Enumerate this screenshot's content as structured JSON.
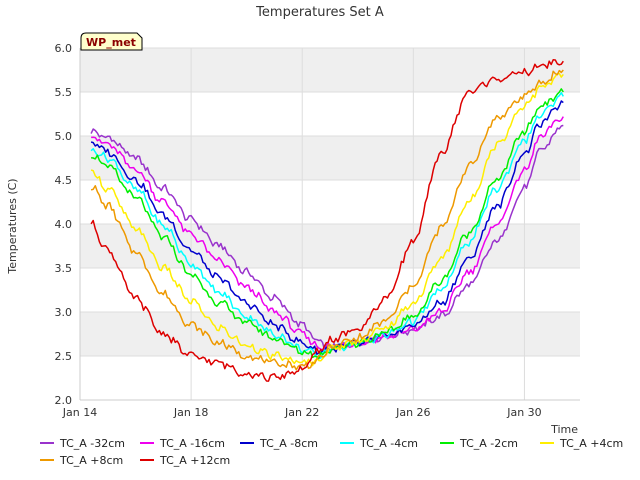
{
  "chart_data": {
    "type": "line",
    "title": "Temperatures Set A",
    "xlabel": "Time",
    "ylabel": "Temperatures (C)",
    "badge": "WP_met",
    "x_ticks": [
      "Jan 14",
      "Jan 18",
      "Jan 22",
      "Jan 26",
      "Jan 30"
    ],
    "x_tick_days": [
      14,
      18,
      22,
      26,
      30
    ],
    "y_ticks": [
      "2.0",
      "2.5",
      "3.0",
      "3.5",
      "4.0",
      "4.5",
      "5.0",
      "5.5",
      "6.0"
    ],
    "xlim": [
      14,
      32
    ],
    "ylim": [
      2.0,
      6.0
    ],
    "grid": true,
    "legend_position": "bottom",
    "x_key_days": [
      14.4,
      15,
      16,
      17,
      18,
      19,
      20,
      21,
      22,
      22.6,
      23,
      24,
      25,
      26,
      27,
      28,
      29,
      30,
      30.6,
      31.4
    ],
    "series": [
      {
        "name": "TC_A -32cm",
        "color": "#9933cc",
        "values": [
          5.05,
          4.98,
          4.75,
          4.4,
          4.05,
          3.75,
          3.45,
          3.15,
          2.85,
          2.65,
          2.6,
          2.65,
          2.72,
          2.8,
          2.95,
          3.3,
          3.8,
          4.4,
          4.85,
          5.12
        ]
      },
      {
        "name": "TC_A -16cm",
        "color": "#ee00ee",
        "values": [
          5.0,
          4.9,
          4.62,
          4.25,
          3.88,
          3.58,
          3.28,
          3.0,
          2.75,
          2.6,
          2.6,
          2.65,
          2.72,
          2.8,
          3.0,
          3.45,
          4.0,
          4.6,
          5.0,
          5.22
        ]
      },
      {
        "name": "TC_A -8cm",
        "color": "#0000cc",
        "values": [
          4.93,
          4.82,
          4.5,
          4.1,
          3.7,
          3.38,
          3.1,
          2.85,
          2.65,
          2.55,
          2.58,
          2.64,
          2.72,
          2.85,
          3.1,
          3.6,
          4.2,
          4.8,
          5.15,
          5.38
        ]
      },
      {
        "name": "TC_A -4cm",
        "color": "#00ffff",
        "values": [
          4.85,
          4.75,
          4.4,
          3.98,
          3.55,
          3.22,
          2.95,
          2.75,
          2.58,
          2.5,
          2.58,
          2.64,
          2.74,
          2.9,
          3.25,
          3.8,
          4.4,
          4.95,
          5.25,
          5.45
        ]
      },
      {
        "name": "TC_A -2cm",
        "color": "#00ee00",
        "values": [
          4.8,
          4.65,
          4.3,
          3.85,
          3.42,
          3.1,
          2.88,
          2.7,
          2.55,
          2.5,
          2.58,
          2.65,
          2.76,
          2.95,
          3.35,
          3.9,
          4.5,
          5.05,
          5.35,
          5.5
        ]
      },
      {
        "name": "TC_A +4cm",
        "color": "#ffee00",
        "values": [
          4.6,
          4.4,
          3.95,
          3.5,
          3.12,
          2.82,
          2.62,
          2.5,
          2.42,
          2.45,
          2.58,
          2.67,
          2.82,
          3.1,
          3.6,
          4.25,
          4.9,
          5.35,
          5.55,
          5.7
        ]
      },
      {
        "name": "TC_A +8cm",
        "color": "#ee9900",
        "values": [
          4.42,
          4.2,
          3.68,
          3.2,
          2.85,
          2.65,
          2.5,
          2.42,
          2.38,
          2.45,
          2.6,
          2.7,
          2.9,
          3.3,
          3.95,
          4.65,
          5.2,
          5.45,
          5.6,
          5.75
        ]
      },
      {
        "name": "TC_A +12cm",
        "color": "#dd0000",
        "values": [
          4.0,
          3.7,
          3.15,
          2.75,
          2.5,
          2.42,
          2.3,
          2.25,
          2.35,
          2.55,
          2.68,
          2.8,
          3.15,
          3.8,
          4.8,
          5.5,
          5.65,
          5.72,
          5.8,
          5.85
        ]
      }
    ]
  }
}
